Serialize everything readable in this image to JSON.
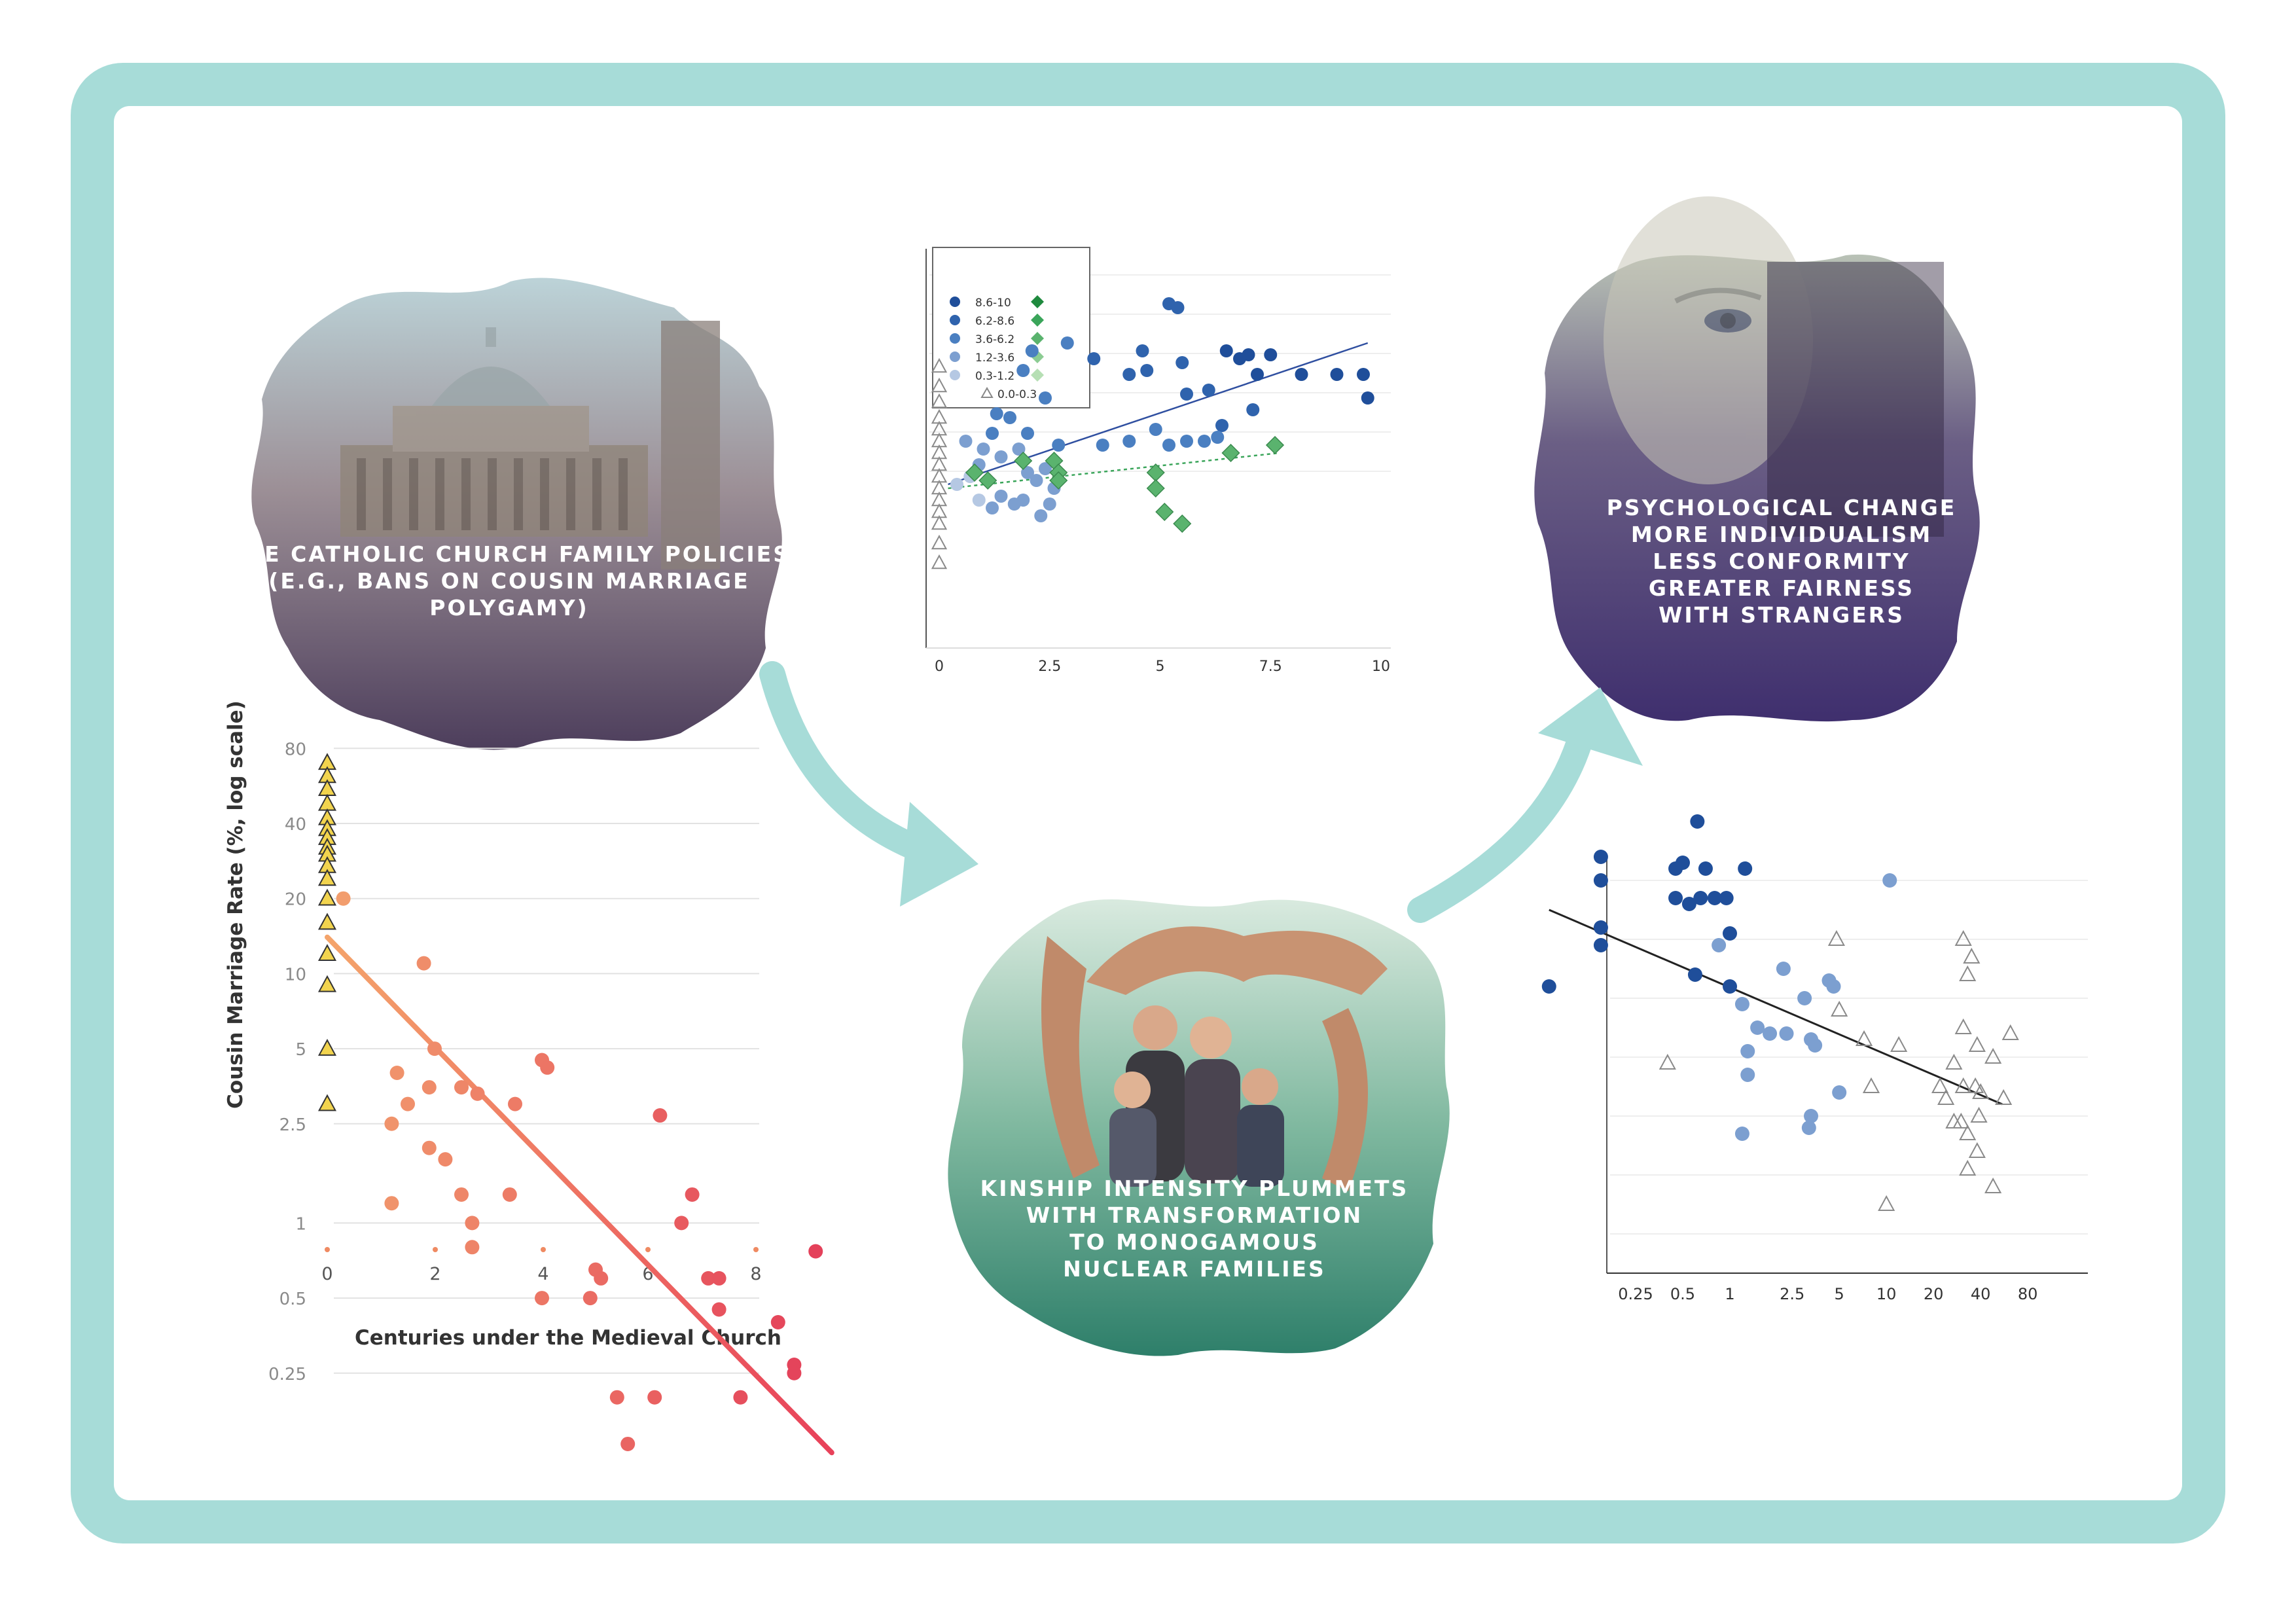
{
  "cards": {
    "church": {
      "lines": [
        "THE CATHOLIC CHURCH FAMILY POLICIES",
        "(E.G., BANS ON COUSIN MARRIAGE",
        "POLYGAMY)"
      ],
      "image": "st-peters-basilica"
    },
    "kinship": {
      "lines": [
        "KINSHIP INTENSITY PLUMMETS",
        "WITH TRANSFORMATION",
        "TO MONOGAMOUS",
        "NUCLEAR FAMILIES"
      ],
      "image": "family-sheltered-by-hands"
    },
    "psychology": {
      "lines": [
        "PSYCHOLOGICAL CHANGE",
        "MORE INDIVIDUALISM",
        "LESS CONFORMITY",
        "GREATER FAIRNESS",
        "WITH STRANGERS"
      ],
      "image": "elderly-face-closeup"
    }
  },
  "colors": {
    "frame": "#a7dcd8",
    "arrow": "#a7dcd8",
    "church_tint": "#5c4a6e",
    "kinship_tint": "#3f8f7a",
    "psych_tint": "#4b3a7a"
  },
  "chart_data": [
    {
      "type": "scatter",
      "xlabel": "Centuries under the Medieval Church",
      "ylabel": "Cousin Marriage Rate (%, log scale)",
      "y_scale": "log",
      "xticks": [
        "0",
        "2",
        "4",
        "8",
        "6"
      ],
      "xtick_values": [
        0,
        2,
        4,
        8,
        6
      ],
      "yticks": [
        "80",
        "40",
        "20",
        "10",
        "5",
        "2.5",
        "1",
        "0.5",
        "0.25"
      ],
      "ytick_values": [
        80,
        40,
        20,
        10,
        5,
        2.5,
        1,
        0.5,
        0.25
      ],
      "grid": true,
      "series": [
        {
          "marker": "triangle",
          "color": "#f2d44e",
          "points": [
            [
              0,
              70
            ],
            [
              0,
              62
            ],
            [
              0,
              55
            ],
            [
              0,
              48
            ],
            [
              0,
              42
            ],
            [
              0,
              38
            ],
            [
              0,
              35
            ],
            [
              0,
              32
            ],
            [
              0,
              30
            ],
            [
              0,
              27
            ],
            [
              0,
              24
            ],
            [
              0,
              20
            ],
            [
              0,
              16
            ],
            [
              0,
              12
            ],
            [
              0,
              9
            ],
            [
              0,
              5
            ],
            [
              0,
              3
            ]
          ]
        },
        {
          "marker": "circle",
          "color": "#ef8a62",
          "points": [
            [
              0.3,
              20
            ],
            [
              1.8,
              11
            ],
            [
              2,
              5
            ],
            [
              1.3,
              4
            ],
            [
              1.5,
              3
            ],
            [
              1.2,
              2.5
            ],
            [
              1.9,
              3.5
            ],
            [
              2.5,
              3.5
            ],
            [
              2.8,
              3.3
            ],
            [
              1.9,
              2
            ],
            [
              2.2,
              1.8
            ],
            [
              2.5,
              1.3
            ],
            [
              2.7,
              0.8
            ],
            [
              2.7,
              1
            ],
            [
              1.2,
              1.2
            ],
            [
              3.5,
              3
            ],
            [
              4,
              4.5
            ],
            [
              4.1,
              4.2
            ],
            [
              3.4,
              1.3
            ],
            [
              4,
              0.5
            ],
            [
              4.9,
              0.5
            ],
            [
              5,
              0.65
            ],
            [
              5.1,
              0.6
            ],
            [
              5.4,
              0.2
            ],
            [
              5.6,
              0.13
            ],
            [
              6.1,
              0.2
            ],
            [
              6.2,
              2.7
            ],
            [
              6.6,
              1
            ],
            [
              6.8,
              1.3
            ],
            [
              7.1,
              0.6
            ],
            [
              7.3,
              0.6
            ],
            [
              7.3,
              0.45
            ],
            [
              7.7,
              0.2
            ],
            [
              8.4,
              0.4
            ],
            [
              8.7,
              0.27
            ],
            [
              8.7,
              0.25
            ],
            [
              9.1,
              0.77
            ]
          ]
        }
      ],
      "trend": {
        "x": [
          0,
          9.4
        ],
        "y": [
          14,
          0.12
        ]
      }
    },
    {
      "type": "scatter",
      "xticks": [
        "0",
        "2.5",
        "5",
        "7.5",
        "10"
      ],
      "xtick_values": [
        0,
        2.5,
        5,
        7.5,
        10
      ],
      "grid": true,
      "legend": {
        "position": "top-left",
        "entries": [
          "8.6-10",
          "6.2-8.6",
          "3.6-6.2",
          "1.2-3.6",
          "0.3-1.2",
          "0.0-0.3"
        ]
      },
      "series": [
        {
          "name": "8.6-10",
          "marker": "circle",
          "color": "#1f4e9a",
          "points": [
            [
              6.5,
              7.4
            ],
            [
              6.8,
              7.2
            ],
            [
              7.0,
              7.3
            ],
            [
              7.5,
              7.3
            ],
            [
              8.2,
              6.8
            ],
            [
              7.2,
              6.8
            ],
            [
              9.0,
              6.8
            ],
            [
              9.6,
              6.8
            ],
            [
              9.7,
              6.2
            ]
          ]
        },
        {
          "name": "6.2-8.6",
          "marker": "circle",
          "color": "#2f63ad",
          "points": [
            [
              5.2,
              8.6
            ],
            [
              5.4,
              8.5
            ],
            [
              4.6,
              7.4
            ],
            [
              5.5,
              7.1
            ],
            [
              4.7,
              6.9
            ],
            [
              3.5,
              7.2
            ],
            [
              4.3,
              6.8
            ],
            [
              5.6,
              6.3
            ],
            [
              6.1,
              6.4
            ],
            [
              7.1,
              5.9
            ],
            [
              6.4,
              5.5
            ]
          ]
        },
        {
          "name": "3.6-6.2",
          "marker": "circle",
          "color": "#4a7fc1",
          "points": [
            [
              2.9,
              7.6
            ],
            [
              2.1,
              7.4
            ],
            [
              1.9,
              6.9
            ],
            [
              1.3,
              5.8
            ],
            [
              1.6,
              5.7
            ],
            [
              2.4,
              6.2
            ],
            [
              1.2,
              5.3
            ],
            [
              2.0,
              5.3
            ],
            [
              2.7,
              5.0
            ],
            [
              3.7,
              5.0
            ],
            [
              4.3,
              5.1
            ],
            [
              4.9,
              5.4
            ],
            [
              6.0,
              5.1
            ],
            [
              6.3,
              5.2
            ],
            [
              5.2,
              5.0
            ],
            [
              5.6,
              5.1
            ]
          ]
        },
        {
          "name": "1.2-3.6",
          "marker": "circle",
          "color": "#7c9fd0",
          "points": [
            [
              0.6,
              5.1
            ],
            [
              1.0,
              4.9
            ],
            [
              0.9,
              4.5
            ],
            [
              1.4,
              4.7
            ],
            [
              1.8,
              4.9
            ],
            [
              2.0,
              4.3
            ],
            [
              2.4,
              4.4
            ],
            [
              2.2,
              4.1
            ],
            [
              2.6,
              3.9
            ],
            [
              1.4,
              3.7
            ],
            [
              1.7,
              3.5
            ],
            [
              2.5,
              3.5
            ],
            [
              2.3,
              3.2
            ],
            [
              1.9,
              3.6
            ],
            [
              1.2,
              3.4
            ]
          ]
        },
        {
          "name": "0.3-1.2",
          "marker": "circle",
          "color": "#b5c8e3",
          "points": [
            [
              0.4,
              4.0
            ],
            [
              0.7,
              4.2
            ],
            [
              0.9,
              3.6
            ]
          ]
        },
        {
          "name": "diamonds",
          "marker": "diamond",
          "color": "#5ab36e",
          "points": [
            [
              1.9,
              4.6
            ],
            [
              2.6,
              4.6
            ],
            [
              2.7,
              4.3
            ],
            [
              2.7,
              4.1
            ],
            [
              4.9,
              4.3
            ],
            [
              4.9,
              3.9
            ],
            [
              5.1,
              3.3
            ],
            [
              5.5,
              3.0
            ],
            [
              6.6,
              4.8
            ],
            [
              7.6,
              5.0
            ],
            [
              1.1,
              4.1
            ],
            [
              0.8,
              4.3
            ]
          ]
        },
        {
          "name": "0.0-0.3",
          "marker": "triangle",
          "color": "#9a9a9a",
          "points": [
            [
              0,
              7.0
            ],
            [
              0,
              6.5
            ],
            [
              0,
              6.1
            ],
            [
              0,
              5.7
            ],
            [
              0,
              5.4
            ],
            [
              0,
              5.1
            ],
            [
              0,
              4.8
            ],
            [
              0,
              4.5
            ],
            [
              0,
              4.2
            ],
            [
              0,
              3.9
            ],
            [
              0,
              3.6
            ],
            [
              0,
              3.3
            ],
            [
              0,
              3.0
            ],
            [
              0,
              2.5
            ],
            [
              0,
              2.0
            ]
          ]
        }
      ],
      "trends": [
        {
          "style": "solid",
          "color": "#2f4fa0",
          "x": [
            0.2,
            9.7
          ],
          "y": [
            4.0,
            7.6
          ]
        },
        {
          "style": "dotted",
          "color": "#3aa55a",
          "x": [
            0.2,
            7.7
          ],
          "y": [
            3.9,
            4.8
          ]
        }
      ]
    },
    {
      "type": "scatter",
      "x_scale": "log",
      "xticks": [
        "0.25",
        "0.5",
        "1",
        "2.5",
        "5",
        "10",
        "20",
        "40",
        "80"
      ],
      "xtick_values": [
        0.25,
        0.5,
        1,
        2.5,
        5,
        10,
        20,
        40,
        80
      ],
      "grid": true,
      "series": [
        {
          "marker": "circle",
          "color": "#1f4e9a",
          "points": [
            [
              0.62,
              9.5
            ],
            [
              0.15,
              8.9
            ],
            [
              0.45,
              8.7
            ],
            [
              0.5,
              8.8
            ],
            [
              0.7,
              8.7
            ],
            [
              1.25,
              8.7
            ],
            [
              0.15,
              8.5
            ],
            [
              0.45,
              8.2
            ],
            [
              0.55,
              8.1
            ],
            [
              0.65,
              8.2
            ],
            [
              0.8,
              8.2
            ],
            [
              0.95,
              8.2
            ],
            [
              0.15,
              7.7
            ],
            [
              0.15,
              7.4
            ],
            [
              1.0,
              7.6
            ],
            [
              0.6,
              6.9
            ],
            [
              1.0,
              6.7
            ],
            [
              0.07,
              6.7
            ]
          ]
        },
        {
          "marker": "circle",
          "color": "#7c9fd0",
          "points": [
            [
              10.5,
              8.5
            ],
            [
              0.85,
              7.4
            ],
            [
              2.2,
              7.0
            ],
            [
              4.3,
              6.8
            ],
            [
              4.6,
              6.7
            ],
            [
              1.2,
              6.4
            ],
            [
              3.0,
              6.5
            ],
            [
              1.5,
              6.0
            ],
            [
              1.8,
              5.9
            ],
            [
              2.3,
              5.9
            ],
            [
              3.3,
              5.8
            ],
            [
              3.5,
              5.7
            ],
            [
              1.3,
              5.6
            ],
            [
              1.3,
              5.2
            ],
            [
              5.0,
              4.9
            ],
            [
              3.3,
              4.5
            ],
            [
              3.2,
              4.3
            ],
            [
              1.2,
              4.2
            ]
          ]
        },
        {
          "marker": "triangle",
          "color": "#9a9a9a",
          "points": [
            [
              4.8,
              7.5
            ],
            [
              31,
              7.5
            ],
            [
              35,
              7.2
            ],
            [
              33,
              6.9
            ],
            [
              5.0,
              6.3
            ],
            [
              7.2,
              5.8
            ],
            [
              12,
              5.7
            ],
            [
              31,
              6.0
            ],
            [
              38,
              5.7
            ],
            [
              48,
              5.5
            ],
            [
              62,
              5.9
            ],
            [
              0.4,
              5.4
            ],
            [
              27,
              5.4
            ],
            [
              8,
              5.0
            ],
            [
              22,
              5.0
            ],
            [
              24,
              4.8
            ],
            [
              31,
              5.0
            ],
            [
              37,
              5.0
            ],
            [
              40,
              4.9
            ],
            [
              56,
              4.8
            ],
            [
              27,
              4.4
            ],
            [
              30,
              4.4
            ],
            [
              33,
              4.2
            ],
            [
              39,
              4.5
            ],
            [
              38,
              3.9
            ],
            [
              33,
              3.6
            ],
            [
              48,
              3.3
            ],
            [
              10,
              3.0
            ]
          ]
        }
      ],
      "trend": {
        "x": [
          0.07,
          55
        ],
        "y": [
          8.0,
          4.7
        ]
      }
    }
  ]
}
